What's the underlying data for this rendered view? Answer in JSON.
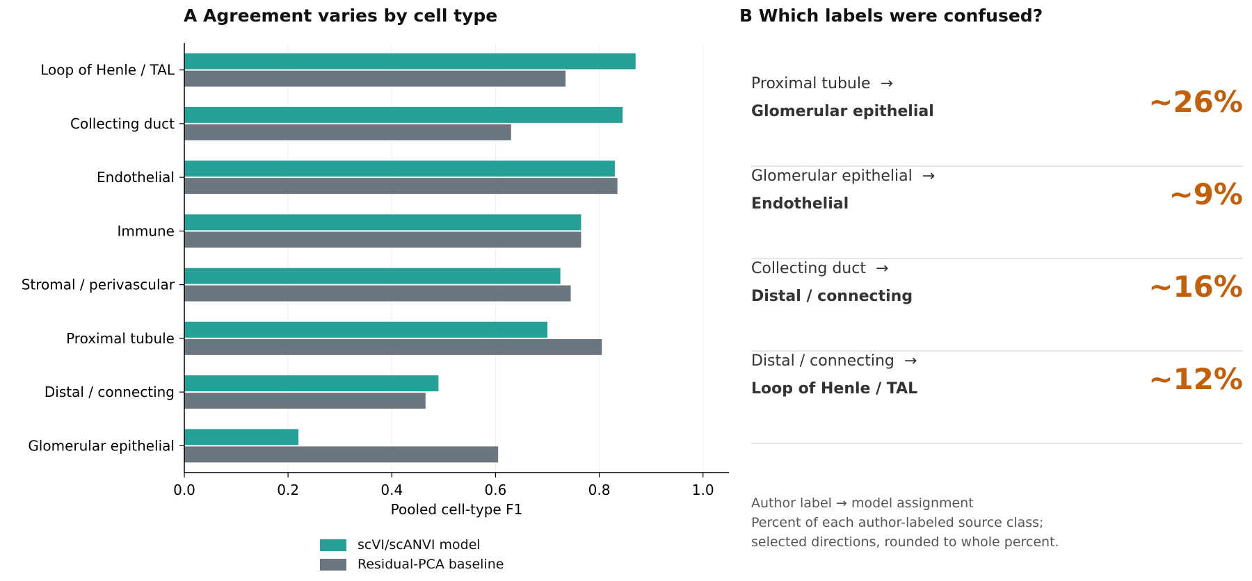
{
  "panel_a": {
    "title": "A  Agreement varies by cell type"
  },
  "panel_b": {
    "title": "B  Which labels were confused?",
    "items": [
      {
        "source": "Proximal tubule",
        "arrow": "→",
        "target": "Glomerular epithelial",
        "percent": "~26%"
      },
      {
        "source": "Glomerular epithelial",
        "arrow": "→",
        "target": "Endothelial",
        "percent": "~9%"
      },
      {
        "source": "Collecting duct",
        "arrow": "→",
        "target": "Distal / connecting",
        "percent": "~16%"
      },
      {
        "source": "Distal / connecting",
        "arrow": "→",
        "target": "Loop of Henle / TAL",
        "percent": "~12%"
      }
    ],
    "notes": [
      "Author label → model assignment",
      "Percent of each author-labeled source class;",
      "selected directions, rounded to whole percent."
    ],
    "accent_color": "#c0600b"
  },
  "chart_data": {
    "type": "bar",
    "orientation": "horizontal",
    "categories": [
      "Loop of Henle / TAL",
      "Collecting duct",
      "Endothelial",
      "Immune",
      "Stromal / perivascular",
      "Proximal tubule",
      "Distal / connecting",
      "Glomerular epithelial"
    ],
    "series": [
      {
        "name": "scVI/scANVI model",
        "color": "#26a096",
        "values": [
          0.87,
          0.845,
          0.83,
          0.765,
          0.725,
          0.7,
          0.49,
          0.22
        ]
      },
      {
        "name": "Residual-PCA baseline",
        "color": "#6c767f",
        "values": [
          0.735,
          0.63,
          0.835,
          0.765,
          0.745,
          0.805,
          0.465,
          0.605
        ]
      }
    ],
    "xlabel": "Pooled cell-type F1",
    "xlim": [
      0,
      1.05
    ],
    "xticks": [
      "0.0",
      "0.2",
      "0.4",
      "0.6",
      "0.8",
      "1.0"
    ],
    "grid": "vertical",
    "legend": "bottom"
  }
}
